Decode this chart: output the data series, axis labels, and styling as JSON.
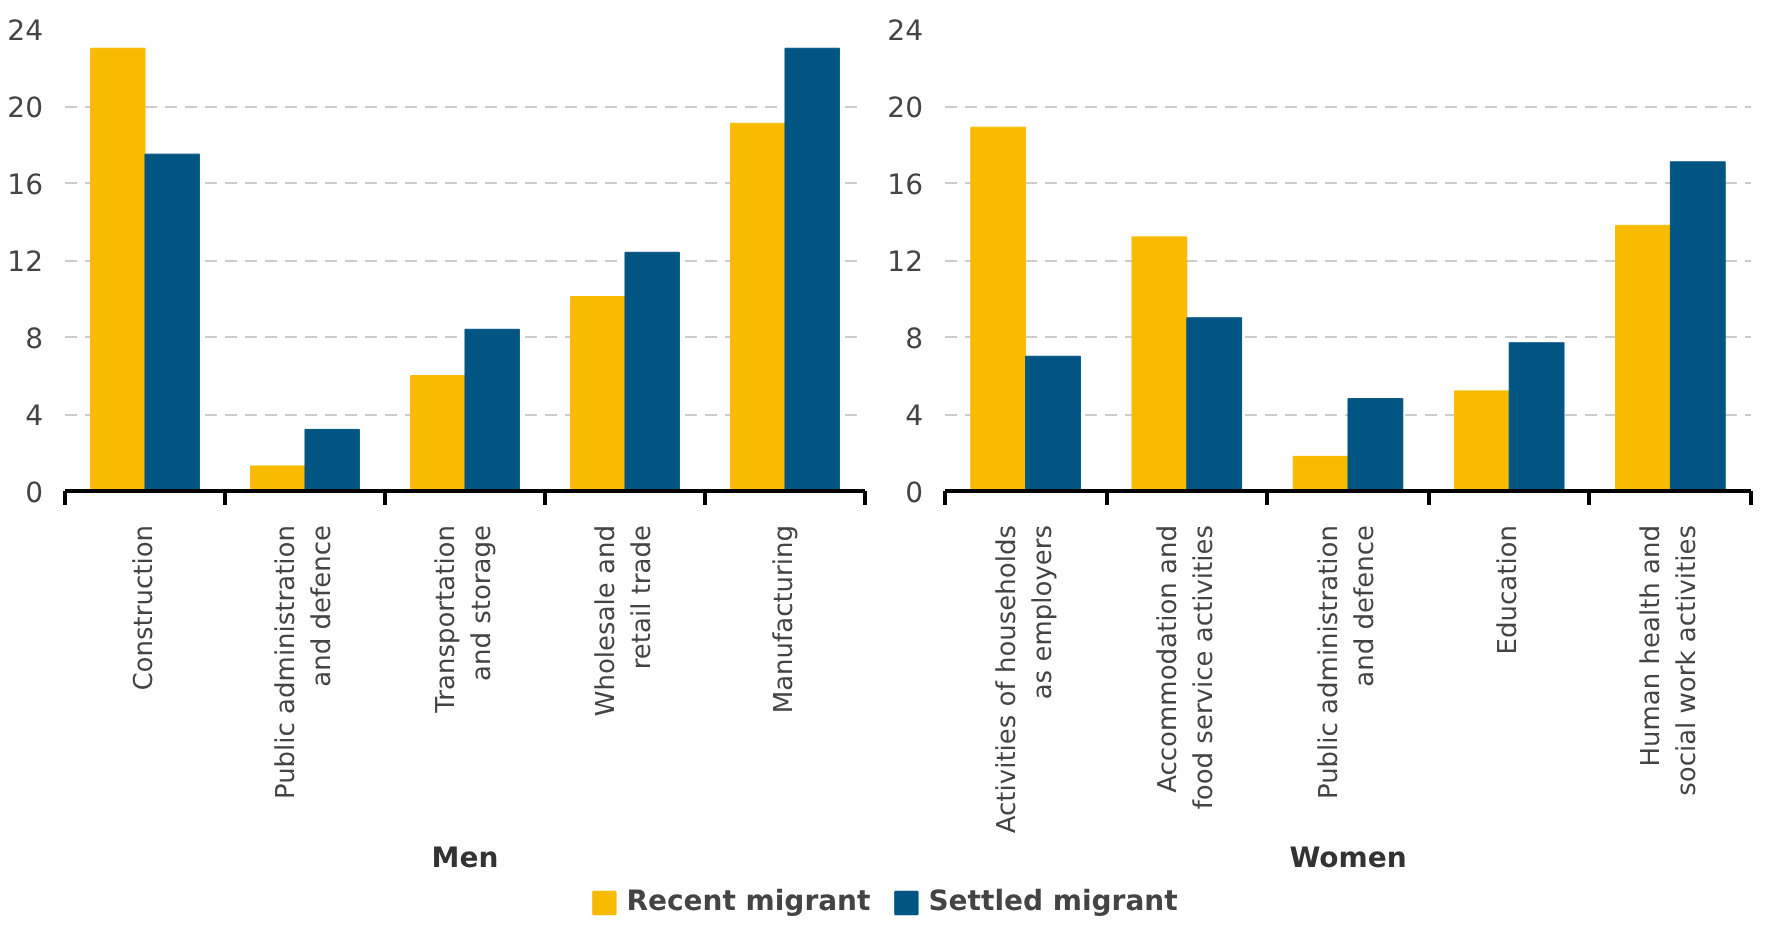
{
  "chart_data": [
    {
      "type": "bar",
      "xlabel": "Men",
      "categories": [
        "Construction",
        "Public administration\nand defence",
        "Transportation\nand storage",
        "Wholesale and\nretail trade",
        "Manufacturing"
      ],
      "series": [
        {
          "name": "Recent migrant",
          "color": "#f8bb00",
          "values": [
            23.0,
            1.3,
            6.0,
            10.1,
            19.1
          ]
        },
        {
          "name": "Settled migrant",
          "color": "#005583",
          "values": [
            17.5,
            3.2,
            8.4,
            12.4,
            23.0
          ]
        }
      ],
      "ylim": [
        0,
        24
      ],
      "yticks": [
        0,
        4,
        8,
        12,
        16,
        20,
        24
      ],
      "grid": "y",
      "legend": "bottom"
    },
    {
      "type": "bar",
      "xlabel": "Women",
      "categories": [
        "Activities of households\nas employers",
        "Accommodation and\nfood service activities",
        "Public administration\nand defence",
        "Education",
        "Human health and\nsocial work activities"
      ],
      "series": [
        {
          "color": "#f8bb00",
          "values": [
            18.9,
            13.2,
            1.8,
            5.2,
            13.8
          ]
        },
        {
          "color": "#005583",
          "values": [
            7.0,
            9.0,
            4.8,
            7.7,
            17.1
          ]
        }
      ],
      "ylim": [
        0,
        24
      ],
      "yticks": [
        0,
        4,
        8,
        12,
        16,
        20,
        24
      ],
      "grid": "y"
    }
  ]
}
